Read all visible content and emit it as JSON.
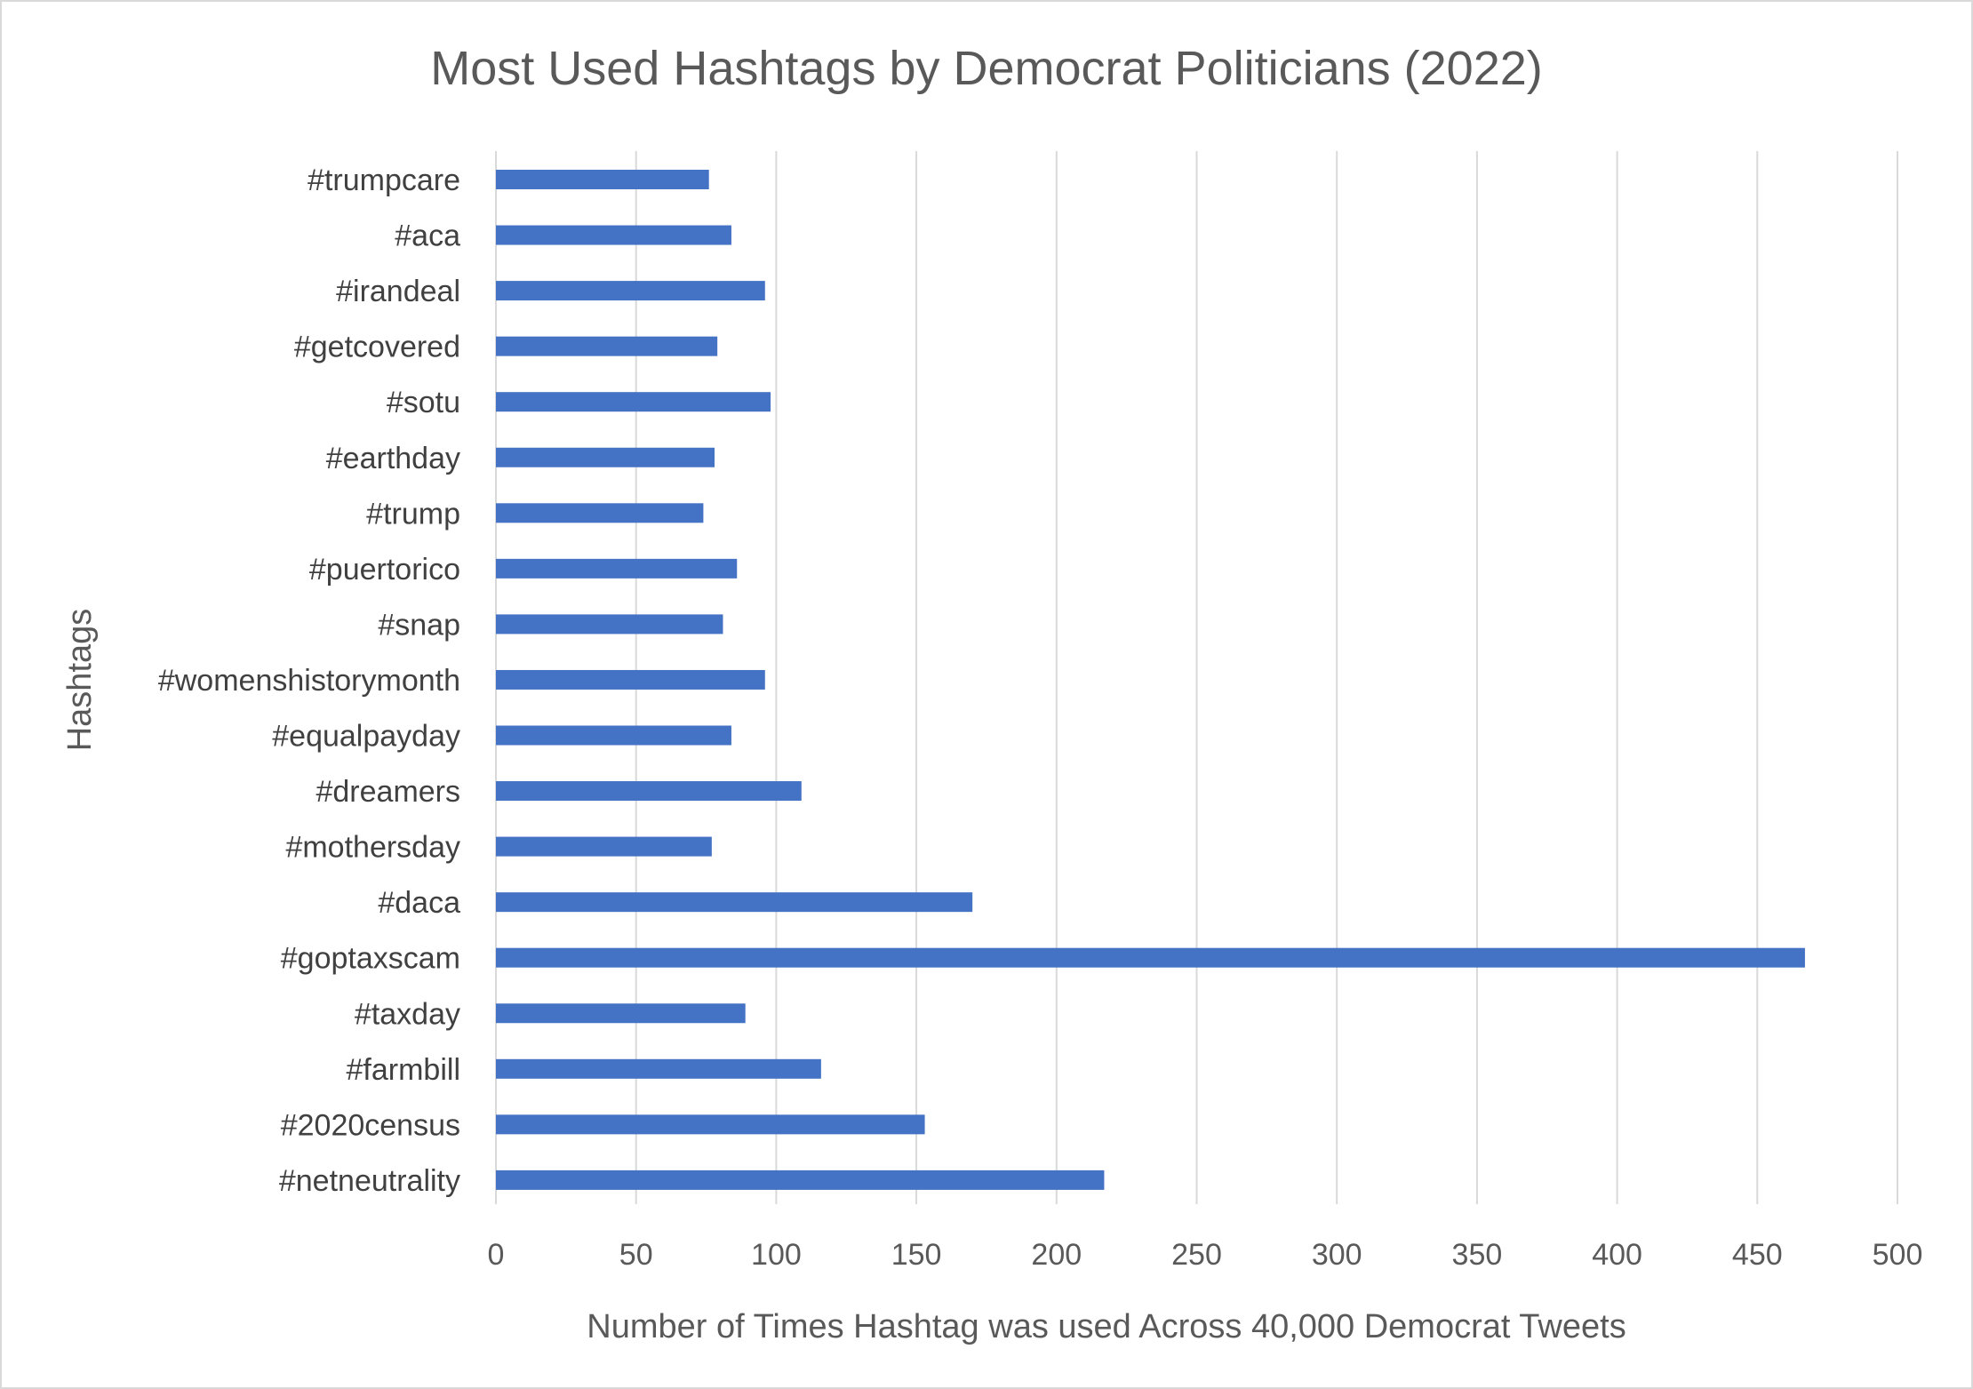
{
  "chart_data": {
    "type": "bar",
    "orientation": "horizontal",
    "title": "Most Used Hashtags by Democrat Politicians (2022)",
    "xlabel": "Number of Times Hashtag was used Across 40,000 Democrat Tweets",
    "ylabel": "Hashtags",
    "xlim": [
      0,
      500
    ],
    "x_ticks": [
      "0",
      "50",
      "100",
      "150",
      "200",
      "250",
      "300",
      "350",
      "400",
      "450",
      "500"
    ],
    "grid": "vertical major gridlines",
    "legend": "none",
    "bar_color": "#4472C4",
    "categories": [
      "#trumpcare",
      "#aca",
      "#irandeal",
      "#getcovered",
      "#sotu",
      "#earthday",
      "#trump",
      "#puertorico",
      "#snap",
      "#womenshistorymonth",
      "#equalpayday",
      "#dreamers",
      "#mothersday",
      "#daca",
      "#goptaxscam",
      "#taxday",
      "#farmbill",
      "#2020census",
      "#netneutrality"
    ],
    "values": [
      76,
      84,
      96,
      79,
      98,
      78,
      74,
      86,
      81,
      96,
      84,
      109,
      77,
      170,
      467,
      89,
      116,
      153,
      217
    ]
  }
}
